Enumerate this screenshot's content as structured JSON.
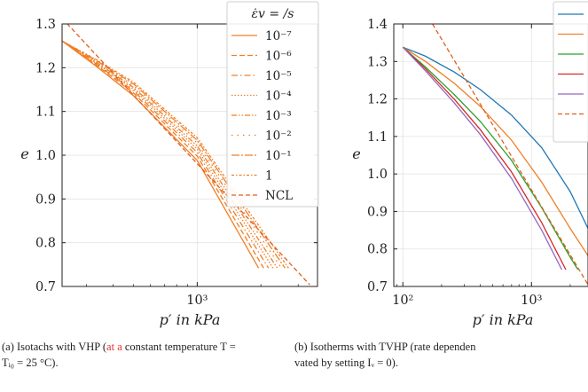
{
  "panels": [
    {
      "id": "a",
      "chart_data": {
        "type": "line",
        "xlabel": "p′ in kPa",
        "ylabel": "e",
        "x_scale": "log",
        "xlim": [
          230,
          3700
        ],
        "ylim": [
          0.7,
          1.3
        ],
        "x_ticks": [
          {
            "value": 1000,
            "label": "10³"
          }
        ],
        "y_ticks": [
          0.7,
          0.8,
          0.9,
          1.0,
          1.1,
          1.2,
          1.3
        ],
        "grid": true,
        "legend": {
          "title": "ε̇v = /s",
          "placement": "top-right"
        },
        "series": [
          {
            "name": "10⁻⁷",
            "color": "#f07f25",
            "dash": "solid",
            "x": [
              230,
              330,
              500,
              1000,
              1950
            ],
            "y": [
              1.261,
              1.205,
              1.136,
              0.988,
              0.742
            ]
          },
          {
            "name": "10⁻⁶",
            "color": "#f07f25",
            "dash": "dashed",
            "x": [
              230,
              330,
              500,
              1000,
              2060
            ],
            "y": [
              1.261,
              1.208,
              1.142,
              0.998,
              0.742
            ]
          },
          {
            "name": "10⁻⁵",
            "color": "#f07f25",
            "dash": "dashdot",
            "x": [
              230,
              330,
              500,
              1000,
              2170
            ],
            "y": [
              1.261,
              1.21,
              1.147,
              1.006,
              0.742
            ]
          },
          {
            "name": "10⁻⁴",
            "color": "#f07f25",
            "dash": "dotted",
            "x": [
              230,
              330,
              500,
              1000,
              2280
            ],
            "y": [
              1.261,
              1.212,
              1.151,
              1.014,
              0.742
            ]
          },
          {
            "name": "10⁻³",
            "color": "#f07f25",
            "dash": "dashdotdot",
            "x": [
              230,
              330,
              500,
              1000,
              2390
            ],
            "y": [
              1.261,
              1.214,
              1.155,
              1.021,
              0.742
            ]
          },
          {
            "name": "10⁻²",
            "color": "#f07f25",
            "dash": "loosedot",
            "x": [
              230,
              330,
              500,
              1000,
              2500
            ],
            "y": [
              1.261,
              1.216,
              1.159,
              1.028,
              0.742
            ]
          },
          {
            "name": "10⁻¹",
            "color": "#f07f25",
            "dash": "longdashdot",
            "x": [
              230,
              330,
              500,
              1000,
              2600
            ],
            "y": [
              1.261,
              1.218,
              1.163,
              1.034,
              0.742
            ]
          },
          {
            "name": "1",
            "color": "#f07f25",
            "dash": "dashdot2",
            "x": [
              230,
              330,
              500,
              1000,
              2700
            ],
            "y": [
              1.261,
              1.22,
              1.167,
              1.04,
              0.742
            ]
          },
          {
            "name": "NCL",
            "color": "#e15f1e",
            "dash": "ncl",
            "x": [
              230,
              3400
            ],
            "y": [
              1.313,
              0.704
            ]
          }
        ]
      }
    },
    {
      "id": "b",
      "chart_data": {
        "type": "line",
        "xlabel": "p′ in kPa",
        "ylabel": "e",
        "x_scale": "log",
        "xlim": [
          85,
          2750
        ],
        "ylim": [
          0.7,
          1.4
        ],
        "x_ticks": [
          {
            "value": 100,
            "label": "10²"
          },
          {
            "value": 1000,
            "label": "10³"
          }
        ],
        "y_ticks": [
          0.7,
          0.8,
          0.9,
          1.0,
          1.1,
          1.2,
          1.3,
          1.4
        ],
        "grid": true,
        "legend": {
          "title": "",
          "placement": "top-right"
        },
        "series": [
          {
            "name": "",
            "color": "#1f77b4",
            "dash": "solid",
            "x": [
              100,
              150,
              250,
              400,
              700,
              1200,
              2000,
              2750
            ],
            "y": [
              1.338,
              1.314,
              1.272,
              1.225,
              1.157,
              1.07,
              0.953,
              0.855
            ]
          },
          {
            "name": "",
            "color": "#f07f25",
            "dash": "solid",
            "x": [
              100,
              150,
              250,
              400,
              700,
              1200,
              2000,
              2750
            ],
            "y": [
              1.338,
              1.3,
              1.242,
              1.18,
              1.09,
              0.978,
              0.855,
              0.782
            ]
          },
          {
            "name": "",
            "color": "#2ca02c",
            "dash": "solid",
            "x": [
              100,
              150,
              250,
              400,
              700,
              1200,
              2000,
              2300
            ],
            "y": [
              1.338,
              1.285,
              1.212,
              1.14,
              1.036,
              0.91,
              0.778,
              0.745
            ]
          },
          {
            "name": "",
            "color": "#d62728",
            "dash": "solid",
            "x": [
              100,
              150,
              250,
              400,
              700,
              1200,
              1850
            ],
            "y": [
              1.338,
              1.28,
              1.2,
              1.118,
              1.005,
              0.87,
              0.745
            ]
          },
          {
            "name": "",
            "color": "#9467bd",
            "dash": "solid",
            "x": [
              100,
              150,
              250,
              400,
              700,
              1200,
              1720
            ],
            "y": [
              1.338,
              1.275,
              1.19,
              1.105,
              0.988,
              0.85,
              0.745
            ]
          },
          {
            "name": "",
            "color": "#e15f1e",
            "dash": "ncl",
            "x": [
              170,
              2750
            ],
            "y": [
              1.4,
              0.705
            ]
          }
        ]
      }
    }
  ],
  "captions": {
    "a": {
      "pre": "(a)  Isotachs with VHP (",
      "highlight": "at a",
      "post": " constant temperature T =",
      "line2": "Tᵢ₀ = 25 °C)."
    },
    "b": {
      "line1": "(b)  Isotherms with TVHP (rate dependen",
      "line2": "vated by setting Iᵥ = 0)."
    }
  }
}
